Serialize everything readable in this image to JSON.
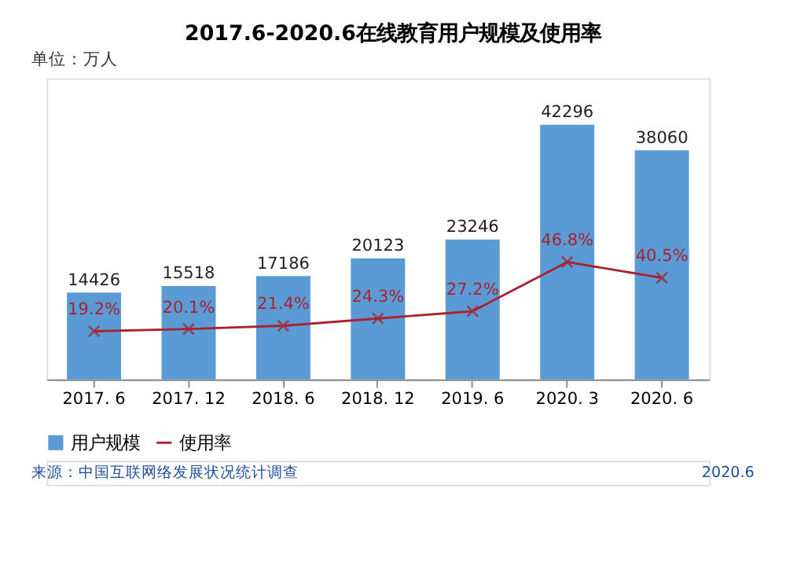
{
  "chart_data": {
    "type": "bar",
    "title": "2017.6-2020.6在线教育用户规模及使用率",
    "categories": [
      "2017. 6",
      "2017. 12",
      "2018. 6",
      "2018. 12",
      "2019. 6",
      "2020. 3",
      "2020. 6"
    ],
    "series": [
      {
        "name": "用户规模",
        "color": "#5b9bd5",
        "values": [
          14426,
          15518,
          17186,
          20123,
          23246,
          42296,
          38060
        ],
        "value_labels": [
          "14426",
          "15518",
          "17186",
          "20123",
          "23246",
          "42296",
          "38060"
        ]
      },
      {
        "name": "使用率",
        "type": "line",
        "axis": "y2",
        "color": "#a8232e",
        "marker": "cross",
        "values": [
          19.2,
          20.1,
          21.4,
          24.3,
          27.2,
          46.8,
          40.5
        ],
        "value_labels": [
          "19.2%",
          "20.1%",
          "21.4%",
          "24.3%",
          "27.2%",
          "46.8%",
          "40.5%"
        ]
      }
    ],
    "ylim": [
      0,
      50000
    ],
    "y2lim": [
      0,
      120
    ],
    "tick_labels": "x",
    "legend": "bottom",
    "annotations": [
      "单位：万人",
      "来源：中国互联网络发展状况统计调查",
      "2020.6"
    ]
  }
}
